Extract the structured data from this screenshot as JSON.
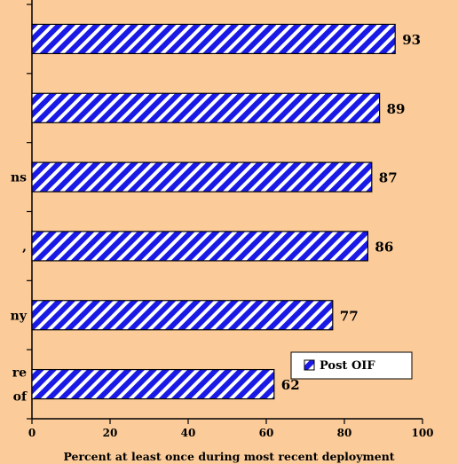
{
  "chart_data": {
    "type": "bar",
    "orientation": "horizontal",
    "categories": [
      "",
      "",
      "ns",
      ",",
      "ny",
      "re of"
    ],
    "category_label_lines": [
      [],
      [],
      [
        "ns"
      ],
      [
        ","
      ],
      [
        "ny"
      ],
      [
        "re",
        "of"
      ]
    ],
    "series": [
      {
        "name": "Post OIF",
        "values": [
          93,
          89,
          87,
          86,
          77,
          62
        ],
        "color": "#1A1AE6",
        "pattern": "diagonal-stripes"
      }
    ],
    "data_labels": [
      "93",
      "89",
      "87",
      "86",
      "77",
      "62"
    ],
    "x_ticks": [
      0,
      20,
      40,
      60,
      80,
      100
    ],
    "x_tick_labels": [
      "0",
      "20",
      "40",
      "60",
      "80",
      "100"
    ],
    "xlim": [
      0,
      100
    ],
    "xlabel": "Percent at least once during most recent deployment",
    "ylabel": "",
    "title": "",
    "grid": false,
    "legend": {
      "position": "bottom-right",
      "entries": [
        "Post OIF"
      ]
    },
    "colors": {
      "background": "#FBCB99",
      "bar": "#1A1AE6",
      "bar_stripe": "#FFFFFF",
      "axis": "#000000"
    }
  }
}
